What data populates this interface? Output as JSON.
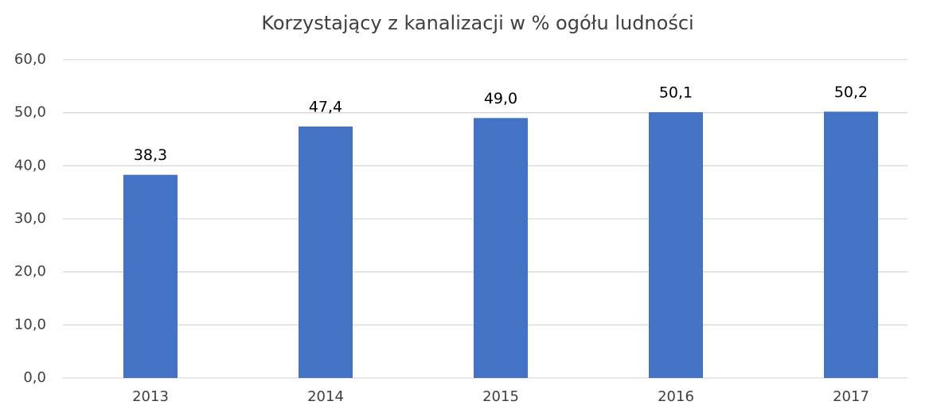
{
  "chart_data": {
    "type": "bar",
    "title": "Korzystający z kanalizacji w % ogółu ludności",
    "categories": [
      "2013",
      "2014",
      "2015",
      "2016",
      "2017"
    ],
    "values": [
      38.3,
      47.4,
      49.0,
      50.1,
      50.2
    ],
    "value_labels": [
      "38,3",
      "47,4",
      "49,0",
      "50,1",
      "50,2"
    ],
    "color": "#4472c4",
    "ylim": [
      0,
      60
    ],
    "yticks": [
      {
        "value": 0,
        "label": "0,0"
      },
      {
        "value": 10,
        "label": "10,0"
      },
      {
        "value": 20,
        "label": "20,0"
      },
      {
        "value": 30,
        "label": "30,0"
      },
      {
        "value": 40,
        "label": "40,0"
      },
      {
        "value": 50,
        "label": "50,0"
      },
      {
        "value": 60,
        "label": "60,0"
      }
    ],
    "grid": true
  }
}
